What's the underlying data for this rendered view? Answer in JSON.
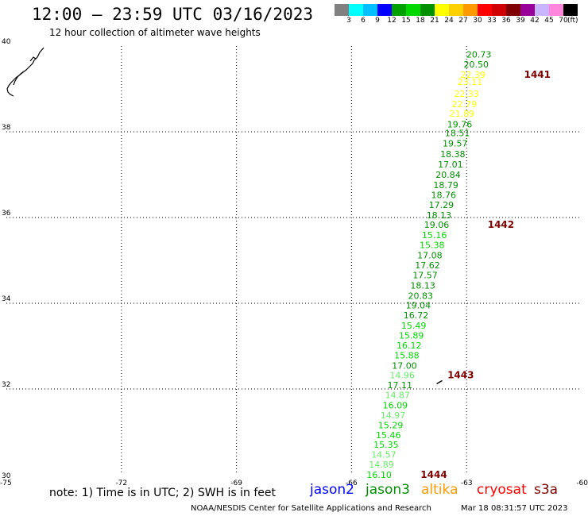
{
  "header": {
    "title": "12:00 – 23:59 UTC 03/16/2023",
    "subtitle": "12 hour collection of altimeter wave heights"
  },
  "legend": {
    "colors": [
      "#808080",
      "#00ffff",
      "#00bfff",
      "#0000ff",
      "#00a000",
      "#00d800",
      "#009000",
      "#ffff00",
      "#ffd000",
      "#ff9900",
      "#ff0000",
      "#d00000",
      "#800000",
      "#990099",
      "#c8b4ff",
      "#ff88dd",
      "#000000"
    ],
    "ticks": [
      "3",
      "6",
      "9",
      "12",
      "15",
      "18",
      "21",
      "24",
      "27",
      "30",
      "33",
      "36",
      "39",
      "42",
      "45",
      "70"
    ],
    "unit": "(ft)"
  },
  "map": {
    "lon_range": [
      -75,
      -60
    ],
    "lat_range": [
      30,
      40
    ],
    "lon_ticks": [
      -75,
      -72,
      -69,
      -66,
      -63,
      -60
    ],
    "lat_ticks": [
      30,
      32,
      34,
      36,
      38,
      40
    ],
    "lon_tick_labels": [
      "-75",
      "-72",
      "-69",
      "-66",
      "-63",
      "-60"
    ],
    "lat_tick_labels": [
      "30",
      "32",
      "34",
      "36",
      "38",
      "40"
    ],
    "grid": "dotted"
  },
  "observations": [
    {
      "lon": -62.68,
      "lat": 39.81,
      "swh": "20.73",
      "color": "#009000"
    },
    {
      "lon": -62.75,
      "lat": 39.57,
      "swh": "20.50",
      "color": "#009000"
    },
    {
      "lon": -62.83,
      "lat": 39.33,
      "swh": "22.39",
      "color": "#ffff00"
    },
    {
      "lon": -62.91,
      "lat": 39.17,
      "swh": "23.11",
      "color": "#ffff00"
    },
    {
      "lon": -63.0,
      "lat": 38.89,
      "swh": "22.33",
      "color": "#ffff00"
    },
    {
      "lon": -63.06,
      "lat": 38.65,
      "swh": "22.79",
      "color": "#ffff00"
    },
    {
      "lon": -63.12,
      "lat": 38.43,
      "swh": "21.89",
      "color": "#ffff00"
    },
    {
      "lon": -63.18,
      "lat": 38.18,
      "swh": "19.76",
      "color": "#009000"
    },
    {
      "lon": -63.24,
      "lat": 37.97,
      "swh": "18.51",
      "color": "#009000"
    },
    {
      "lon": -63.3,
      "lat": 37.73,
      "swh": "19.57",
      "color": "#009000"
    },
    {
      "lon": -63.36,
      "lat": 37.48,
      "swh": "18.38",
      "color": "#009000"
    },
    {
      "lon": -63.42,
      "lat": 37.24,
      "swh": "17.01",
      "color": "#009000"
    },
    {
      "lon": -63.48,
      "lat": 37.0,
      "swh": "20.84",
      "color": "#009000"
    },
    {
      "lon": -63.54,
      "lat": 36.76,
      "swh": "18.79",
      "color": "#009000"
    },
    {
      "lon": -63.6,
      "lat": 36.53,
      "swh": "18.76",
      "color": "#009000"
    },
    {
      "lon": -63.66,
      "lat": 36.3,
      "swh": "17.29",
      "color": "#009000"
    },
    {
      "lon": -63.72,
      "lat": 36.06,
      "swh": "18.13",
      "color": "#009000"
    },
    {
      "lon": -63.78,
      "lat": 35.83,
      "swh": "19.06",
      "color": "#009000"
    },
    {
      "lon": -63.84,
      "lat": 35.59,
      "swh": "15.16",
      "color": "#00d800"
    },
    {
      "lon": -63.9,
      "lat": 35.36,
      "swh": "15.38",
      "color": "#00d800"
    },
    {
      "lon": -63.96,
      "lat": 35.12,
      "swh": "17.08",
      "color": "#009000"
    },
    {
      "lon": -64.02,
      "lat": 34.89,
      "swh": "17.62",
      "color": "#009000"
    },
    {
      "lon": -64.08,
      "lat": 34.66,
      "swh": "17.57",
      "color": "#009000"
    },
    {
      "lon": -64.14,
      "lat": 34.42,
      "swh": "18.13",
      "color": "#009000"
    },
    {
      "lon": -64.2,
      "lat": 34.18,
      "swh": "20.83",
      "color": "#009000"
    },
    {
      "lon": -64.26,
      "lat": 33.95,
      "swh": "19.04",
      "color": "#009000"
    },
    {
      "lon": -64.32,
      "lat": 33.72,
      "swh": "16.72",
      "color": "#009000"
    },
    {
      "lon": -64.38,
      "lat": 33.48,
      "swh": "15.49",
      "color": "#00d800"
    },
    {
      "lon": -64.44,
      "lat": 33.25,
      "swh": "15.89",
      "color": "#00d800"
    },
    {
      "lon": -64.5,
      "lat": 33.02,
      "swh": "16.12",
      "color": "#00d800"
    },
    {
      "lon": -64.56,
      "lat": 32.79,
      "swh": "15.88",
      "color": "#00d800"
    },
    {
      "lon": -64.62,
      "lat": 32.55,
      "swh": "17.00",
      "color": "#009000"
    },
    {
      "lon": -64.68,
      "lat": 32.32,
      "swh": "14.96",
      "color": "#66ee66"
    },
    {
      "lon": -64.74,
      "lat": 32.09,
      "swh": "17.11",
      "color": "#009000"
    },
    {
      "lon": -64.8,
      "lat": 31.86,
      "swh": "14.87",
      "color": "#66ee66"
    },
    {
      "lon": -64.86,
      "lat": 31.62,
      "swh": "16.09",
      "color": "#00d800"
    },
    {
      "lon": -64.92,
      "lat": 31.39,
      "swh": "14.97",
      "color": "#66ee66"
    },
    {
      "lon": -64.98,
      "lat": 31.16,
      "swh": "15.29",
      "color": "#00d800"
    },
    {
      "lon": -65.04,
      "lat": 30.93,
      "swh": "15.46",
      "color": "#00d800"
    },
    {
      "lon": -65.1,
      "lat": 30.7,
      "swh": "15.35",
      "color": "#00d800"
    },
    {
      "lon": -65.16,
      "lat": 30.47,
      "swh": "14.57",
      "color": "#66ee66"
    },
    {
      "lon": -65.22,
      "lat": 30.24,
      "swh": "14.89",
      "color": "#66ee66"
    },
    {
      "lon": -65.28,
      "lat": 30.0,
      "swh": "16.10",
      "color": "#00d800"
    }
  ],
  "time_labels": [
    {
      "lon": -61.5,
      "lat": 39.33,
      "text": "1441"
    },
    {
      "lon": -62.45,
      "lat": 35.83,
      "text": "1442"
    },
    {
      "lon": -63.5,
      "lat": 32.32,
      "text": "1443"
    },
    {
      "lon": -64.2,
      "lat": 30.0,
      "text": "1444"
    }
  ],
  "note": "note:  1) Time is in UTC;  2) SWH is in feet",
  "satellites": [
    {
      "label": "jason2",
      "color": "#0000ff"
    },
    {
      "label": "jason3",
      "color": "#009000"
    },
    {
      "label": "altika",
      "color": "#ff9900"
    },
    {
      "label": "cryosat",
      "color": "#ff0000"
    },
    {
      "label": "s3a",
      "color": "#800000"
    }
  ],
  "footer": {
    "credit": "NOAA/NESDIS Center for Satellite Applications and Research",
    "timestamp": "Mar 18 08:31:57 UTC 2023"
  }
}
